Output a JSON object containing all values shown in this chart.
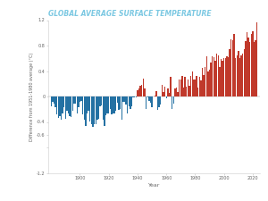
{
  "title": "GLOBAL AVERAGE SURFACE TEMPERATURE",
  "title_color": "#7bc8e2",
  "xlabel": "Year",
  "ylabel": "Difference from 1951-1980 average (°C)",
  "ylim": [
    -1.2,
    1.2
  ],
  "background_color": "#ffffff",
  "bar_color_pos": "#c0392b",
  "bar_color_neg": "#2471a3",
  "years": [
    1880,
    1881,
    1882,
    1883,
    1884,
    1885,
    1886,
    1887,
    1888,
    1889,
    1890,
    1891,
    1892,
    1893,
    1894,
    1895,
    1896,
    1897,
    1898,
    1899,
    1900,
    1901,
    1902,
    1903,
    1904,
    1905,
    1906,
    1907,
    1908,
    1909,
    1910,
    1911,
    1912,
    1913,
    1914,
    1915,
    1916,
    1917,
    1918,
    1919,
    1920,
    1921,
    1922,
    1923,
    1924,
    1925,
    1926,
    1927,
    1928,
    1929,
    1930,
    1931,
    1932,
    1933,
    1934,
    1935,
    1936,
    1937,
    1938,
    1939,
    1940,
    1941,
    1942,
    1943,
    1944,
    1945,
    1946,
    1947,
    1948,
    1949,
    1950,
    1951,
    1952,
    1953,
    1954,
    1955,
    1956,
    1957,
    1958,
    1959,
    1960,
    1961,
    1962,
    1963,
    1964,
    1965,
    1966,
    1967,
    1968,
    1969,
    1970,
    1971,
    1972,
    1973,
    1974,
    1975,
    1976,
    1977,
    1978,
    1979,
    1980,
    1981,
    1982,
    1983,
    1984,
    1985,
    1986,
    1987,
    1988,
    1989,
    1990,
    1991,
    1992,
    1993,
    1994,
    1995,
    1996,
    1997,
    1998,
    1999,
    2000,
    2001,
    2002,
    2003,
    2004,
    2005,
    2006,
    2007,
    2008,
    2009,
    2010,
    2011,
    2012,
    2013,
    2014,
    2015,
    2016,
    2017,
    2018,
    2019,
    2020,
    2021,
    2022,
    2023
  ],
  "anomalies": [
    -0.16,
    -0.08,
    -0.11,
    -0.17,
    -0.28,
    -0.33,
    -0.31,
    -0.36,
    -0.27,
    -0.17,
    -0.35,
    -0.22,
    -0.27,
    -0.31,
    -0.32,
    -0.23,
    -0.11,
    -0.11,
    -0.27,
    -0.17,
    -0.08,
    -0.07,
    -0.28,
    -0.37,
    -0.47,
    -0.26,
    -0.22,
    -0.39,
    -0.43,
    -0.48,
    -0.43,
    -0.44,
    -0.36,
    -0.35,
    -0.15,
    -0.14,
    -0.36,
    -0.46,
    -0.3,
    -0.27,
    -0.27,
    -0.19,
    -0.28,
    -0.26,
    -0.27,
    -0.22,
    -0.1,
    -0.21,
    -0.2,
    -0.36,
    -0.09,
    -0.08,
    -0.12,
    -0.27,
    -0.15,
    -0.2,
    -0.15,
    -0.02,
    -0.01,
    -0.01,
    0.1,
    0.13,
    0.17,
    0.18,
    0.28,
    0.13,
    -0.19,
    -0.02,
    -0.07,
    -0.1,
    -0.17,
    0.0,
    0.02,
    0.08,
    -0.21,
    -0.17,
    -0.13,
    0.18,
    0.07,
    0.16,
    -0.03,
    0.13,
    0.05,
    0.31,
    -0.2,
    -0.11,
    0.12,
    0.14,
    0.07,
    0.27,
    0.26,
    0.32,
    0.14,
    0.31,
    0.16,
    0.26,
    0.17,
    0.32,
    0.4,
    0.27,
    0.26,
    0.32,
    0.14,
    0.31,
    0.25,
    0.45,
    0.33,
    0.46,
    0.63,
    0.4,
    0.42,
    0.54,
    0.63,
    0.62,
    0.56,
    0.68,
    0.64,
    0.46,
    0.59,
    0.56,
    0.61,
    0.61,
    0.63,
    0.62,
    0.75,
    0.9,
    0.88,
    0.98,
    0.61,
    0.64,
    0.72,
    0.61,
    0.64,
    0.68,
    0.75,
    0.87,
    1.01,
    0.92,
    0.85,
    0.98,
    1.02,
    0.85,
    0.89,
    1.17
  ],
  "xticks": [
    1900,
    1920,
    1940,
    1960,
    1980,
    2000,
    2020
  ],
  "yticks": [
    -1.2,
    -0.8,
    -0.6,
    -0.4,
    0,
    0.4,
    0.8,
    1.2
  ],
  "ytick_labels": [
    "-1.2",
    "",
    "-0.6",
    "-0.4",
    "0",
    "0.4",
    "0.8",
    "1.2"
  ],
  "xlim": [
    1878,
    2025
  ]
}
